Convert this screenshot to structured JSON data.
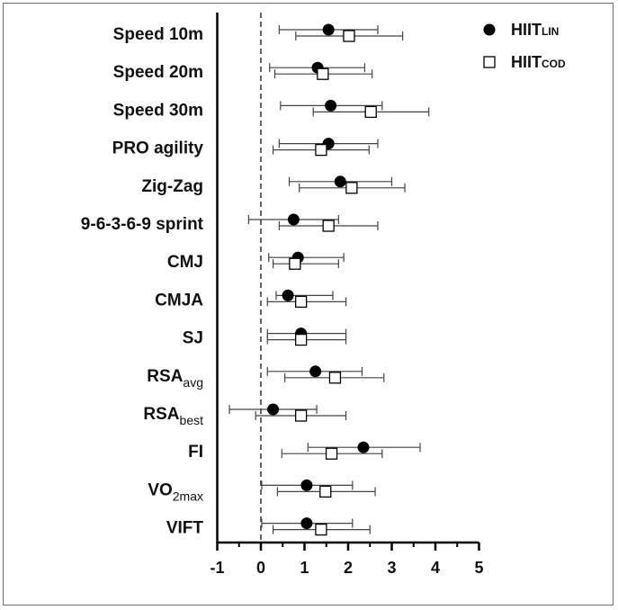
{
  "chart_data": {
    "type": "forest",
    "title": "",
    "xlabel": "",
    "ylabel": "",
    "xlim": [
      -1,
      5
    ],
    "xticks": [
      -1,
      0,
      1,
      2,
      3,
      4,
      5
    ],
    "reference_line": 0,
    "legend_position": "top-right",
    "categories": [
      {
        "main": "Speed 10m",
        "sub": ""
      },
      {
        "main": "Speed 20m",
        "sub": ""
      },
      {
        "main": "Speed 30m",
        "sub": ""
      },
      {
        "main": "PRO agility",
        "sub": ""
      },
      {
        "main": "Zig-Zag",
        "sub": ""
      },
      {
        "main": "9-6-3-6-9 sprint",
        "sub": ""
      },
      {
        "main": "CMJ",
        "sub": ""
      },
      {
        "main": "CMJA",
        "sub": ""
      },
      {
        "main": "SJ",
        "sub": ""
      },
      {
        "main": "RSA",
        "sub": "avg"
      },
      {
        "main": "RSA",
        "sub": "best"
      },
      {
        "main": "FI",
        "sub": ""
      },
      {
        "main": "VO",
        "sub": "2max"
      },
      {
        "main": "VIFT",
        "sub": ""
      }
    ],
    "series": [
      {
        "legend_main": "HIIT",
        "legend_sub": "LIN",
        "marker": "filled-circle",
        "color": "#000000",
        "values": [
          1.55,
          1.3,
          1.6,
          1.55,
          1.82,
          0.75,
          0.85,
          0.62,
          0.92,
          1.25,
          0.28,
          2.35,
          1.05,
          1.05
        ],
        "lower": [
          0.42,
          0.2,
          0.45,
          0.42,
          0.65,
          -0.28,
          0.18,
          0.35,
          0.15,
          0.15,
          -0.72,
          1.08,
          0.02,
          0.02
        ],
        "upper": [
          2.68,
          2.38,
          2.78,
          2.68,
          3.0,
          1.78,
          1.9,
          1.65,
          1.95,
          2.32,
          1.28,
          3.65,
          2.1,
          2.1
        ]
      },
      {
        "legend_main": "HIIT",
        "legend_sub": "COD",
        "marker": "open-square",
        "color": "#000000",
        "values": [
          2.02,
          1.42,
          2.52,
          1.38,
          2.08,
          1.55,
          0.78,
          0.92,
          0.92,
          1.7,
          0.92,
          1.62,
          1.48,
          1.38
        ],
        "lower": [
          0.8,
          0.32,
          1.2,
          0.28,
          0.88,
          0.42,
          0.28,
          0.15,
          0.15,
          0.55,
          -0.12,
          0.48,
          0.38,
          0.28
        ],
        "upper": [
          3.25,
          2.55,
          3.85,
          2.48,
          3.3,
          2.68,
          1.78,
          1.95,
          1.95,
          2.82,
          1.95,
          2.78,
          2.62,
          2.5
        ]
      }
    ]
  }
}
